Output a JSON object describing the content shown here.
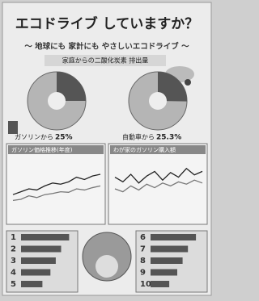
{
  "title": "エコドライブ していますか？",
  "subtitle": "〜 地球にも 家計にも やさしいエコドライブ 〜",
  "section": "家庭からの二酸化炭素 排出量",
  "pies": [
    {
      "caption": "ガソリンから",
      "value": 25,
      "value_label": "25%"
    },
    {
      "caption": "自動車から",
      "value": 25.3,
      "value_label": "25.3%"
    }
  ],
  "line_charts": [
    {
      "title": "ガソリン価格推移(年度)",
      "ylim": [
        0,
        100
      ],
      "series": [
        {
          "color": "#222222",
          "values": [
            40,
            45,
            50,
            48,
            55,
            60,
            58,
            62,
            70,
            66,
            72,
            75
          ]
        },
        {
          "color": "#777777",
          "values": [
            30,
            32,
            38,
            35,
            40,
            42,
            45,
            44,
            50,
            48,
            52,
            55
          ]
        }
      ]
    },
    {
      "title": "わが家のガソリン購入額",
      "ylim": [
        0,
        100
      ],
      "series": [
        {
          "color": "#222222",
          "values": [
            70,
            62,
            75,
            60,
            72,
            80,
            65,
            78,
            70,
            85,
            74,
            80
          ]
        },
        {
          "color": "#777777",
          "values": [
            50,
            45,
            55,
            48,
            58,
            52,
            60,
            55,
            62,
            58,
            65,
            60
          ]
        }
      ]
    }
  ],
  "rankings": [
    {
      "ranks": [
        1,
        2,
        3,
        4,
        5
      ],
      "values": [
        90,
        75,
        65,
        55,
        40
      ]
    },
    {
      "ranks": [
        6,
        7,
        8,
        9,
        10
      ],
      "values": [
        85,
        70,
        60,
        50,
        35
      ]
    }
  ]
}
